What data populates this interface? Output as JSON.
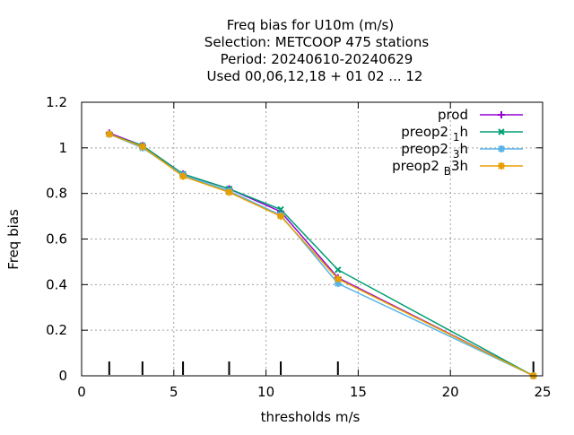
{
  "chart_data": {
    "type": "line",
    "title_lines": [
      "Freq bias  for U10m (m/s)",
      "Selection: METCOOP    475 stations",
      "Period: 20240610-20240629",
      "Used  00,06,12,18 + 01 02 ... 12"
    ],
    "xlabel": "thresholds m/s",
    "ylabel": "Freq bias",
    "xlim": [
      0,
      25
    ],
    "ylim": [
      0,
      1.2
    ],
    "x_ticks": [
      0,
      5,
      10,
      15,
      20,
      25
    ],
    "y_ticks": [
      0,
      0.2,
      0.4,
      0.6,
      0.8,
      1,
      1.2
    ],
    "y_tick_labels": [
      "0",
      "0.2",
      "0.4",
      "0.6",
      "0.8",
      "1",
      "1.2"
    ],
    "grid": true,
    "legend_position": "top-right",
    "threshold_marks": [
      1.5,
      3.3,
      5.5,
      8.0,
      10.8,
      13.9,
      24.5
    ],
    "x": [
      1.5,
      3.3,
      5.5,
      8.0,
      10.8,
      13.9,
      24.5
    ],
    "series": [
      {
        "name": "prod",
        "name_main": "prod",
        "name_sub": "",
        "name_suffix": "",
        "color": "#9400d3",
        "marker": "plus",
        "values": [
          1.065,
          1.01,
          0.885,
          0.82,
          0.72,
          0.43,
          0.0
        ]
      },
      {
        "name": "preop2 1h",
        "name_main": "preop2 ",
        "name_sub": "1",
        "name_suffix": "h",
        "color": "#009e73",
        "marker": "cross",
        "values": [
          1.06,
          1.01,
          0.885,
          0.82,
          0.73,
          0.465,
          0.0
        ]
      },
      {
        "name": "preop2 3h",
        "name_main": "preop2 ",
        "name_sub": "3",
        "name_suffix": "h",
        "color": "#56b4e9",
        "marker": "star",
        "values": [
          1.06,
          1.0,
          0.88,
          0.81,
          0.705,
          0.405,
          0.0
        ]
      },
      {
        "name": "preop2 B 3h",
        "name_main": "preop2 ",
        "name_sub": "B",
        "name_suffix": "3h",
        "color": "#e69f00",
        "marker": "star",
        "values": [
          1.06,
          1.005,
          0.875,
          0.805,
          0.7,
          0.425,
          0.0
        ]
      }
    ]
  }
}
